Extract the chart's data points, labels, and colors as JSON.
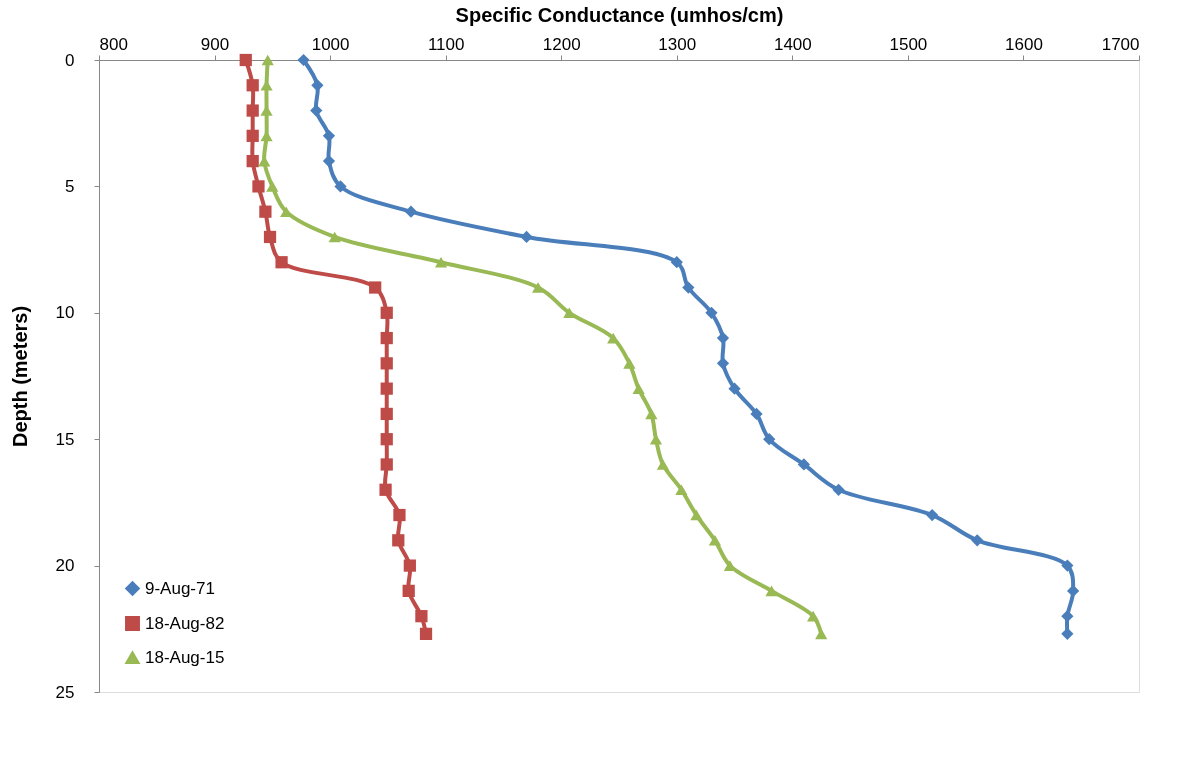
{
  "chart_data": {
    "type": "line",
    "xlabel": "Specific Conductance (umhos/cm)",
    "ylabel": "Depth (meters)",
    "xlim": [
      800,
      1700
    ],
    "xticks": [
      800,
      900,
      1000,
      1100,
      1200,
      1300,
      1400,
      1500,
      1600,
      1700
    ],
    "ylim": [
      25,
      0
    ],
    "yticks": [
      0,
      5,
      10,
      15,
      20,
      25
    ],
    "grid": false,
    "legend": "bottom left",
    "line_style": "solid",
    "series": [
      {
        "name": "9-Aug-71",
        "color": "#4a7ebb",
        "marker": "diamond",
        "x": [
          977,
          989,
          988,
          999,
          999,
          1009,
          1070,
          1170,
          1300,
          1310,
          1330,
          1340,
          1340,
          1350,
          1369,
          1380,
          1410,
          1440,
          1521,
          1560,
          1638,
          1643,
          1638,
          1638
        ],
        "values": [
          0,
          1,
          2,
          3,
          4,
          5,
          6,
          7,
          8,
          9,
          10,
          11,
          12,
          13,
          14,
          15,
          16,
          17,
          18,
          19,
          20,
          21,
          22,
          22.7
        ]
      },
      {
        "name": "18-Aug-82",
        "color": "#be4b48",
        "marker": "square",
        "x": [
          927,
          933,
          933,
          933,
          933,
          938,
          944,
          948,
          958,
          1039,
          1049,
          1049,
          1049,
          1049,
          1049,
          1049,
          1049,
          1048,
          1060,
          1059,
          1069,
          1068,
          1079,
          1083
        ],
        "values": [
          0,
          1,
          2,
          3,
          4,
          5,
          6,
          7,
          8,
          9,
          10,
          11,
          12,
          13,
          14,
          15,
          16,
          17,
          18,
          19,
          20,
          21,
          22,
          22.7
        ]
      },
      {
        "name": "18-Aug-15",
        "color": "#98b954",
        "marker": "triangle",
        "x": [
          946,
          945,
          945,
          945,
          943,
          950,
          962,
          1004,
          1096,
          1180,
          1207,
          1245,
          1259,
          1267,
          1278,
          1282,
          1288,
          1304,
          1317,
          1333,
          1346,
          1382,
          1418,
          1425
        ],
        "values": [
          0,
          1,
          2,
          3,
          4,
          5,
          6,
          7,
          8,
          9,
          10,
          11,
          12,
          13,
          14,
          15,
          16,
          17,
          18,
          19,
          20,
          21,
          22,
          22.7
        ]
      }
    ]
  }
}
